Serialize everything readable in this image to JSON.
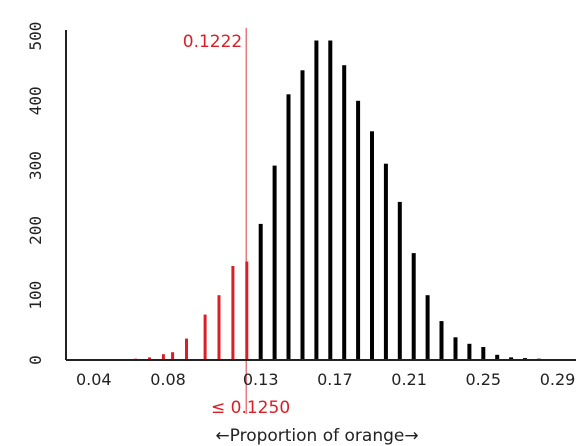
{
  "chart_data": {
    "type": "bar",
    "xlabel": "←Proportion of orange→",
    "x_ticks": [
      "0.04",
      "0.08",
      "0.13",
      "0.17",
      "0.21",
      "0.25",
      "0.29"
    ],
    "x_tick_values": [
      0.04,
      0.08,
      0.13,
      0.17,
      0.21,
      0.25,
      0.29
    ],
    "y_ticks": [
      "0",
      "100",
      "200",
      "300",
      "400",
      "500"
    ],
    "y_tick_values": [
      0,
      100,
      200,
      300,
      400,
      500
    ],
    "xlim": [
      0.025,
      0.3
    ],
    "ylim": [
      0,
      500
    ],
    "threshold": {
      "value": 0.1222,
      "label": "0.1222",
      "sublabel": "≤ 0.1250"
    },
    "colors": {
      "tail": "#d91f26",
      "body": "#000000",
      "threshold_line": "#e87a7e",
      "axis": "#222222"
    },
    "x": [
      0.0625,
      0.07,
      0.0775,
      0.0825,
      0.09,
      0.1,
      0.1075,
      0.115,
      0.1225,
      0.13,
      0.1375,
      0.145,
      0.1525,
      0.16,
      0.1675,
      0.175,
      0.1825,
      0.19,
      0.1975,
      0.205,
      0.2125,
      0.22,
      0.2275,
      0.235,
      0.2425,
      0.25,
      0.2575,
      0.265,
      0.2725,
      0.28
    ],
    "values": [
      2,
      4,
      9,
      12,
      33,
      70,
      100,
      145,
      152,
      210,
      300,
      410,
      447,
      493,
      493,
      455,
      400,
      353,
      303,
      244,
      165,
      100,
      60,
      35,
      25,
      20,
      8,
      4,
      3,
      2
    ]
  }
}
